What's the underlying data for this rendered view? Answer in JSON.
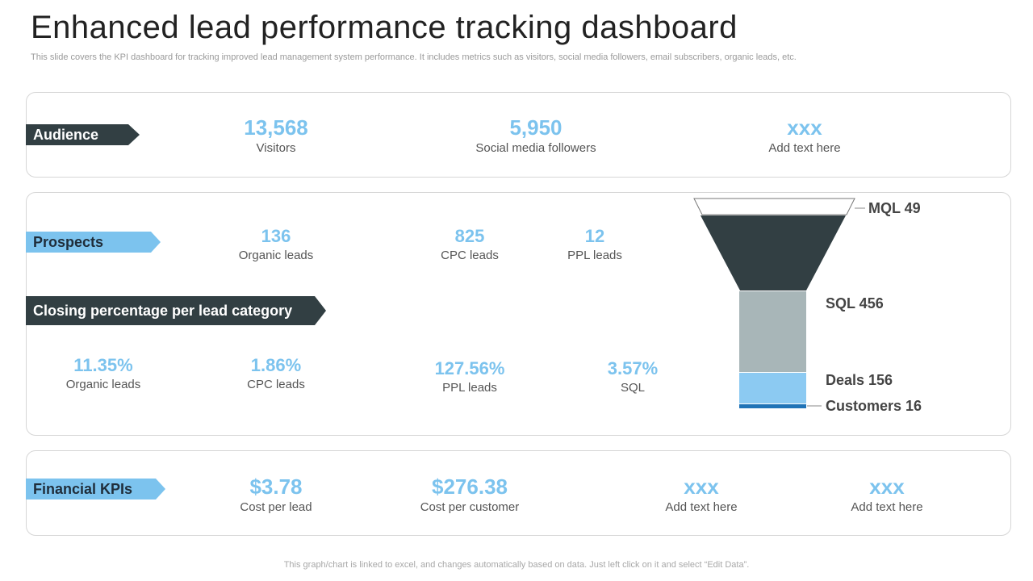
{
  "title": "Enhanced lead performance tracking dashboard",
  "subtitle": "This slide covers the KPI dashboard for tracking improved lead management system performance. It includes metrics such as visitors, social media followers, email subscribers, organic leads, etc.",
  "audience": {
    "tag": "Audience",
    "kpis": [
      {
        "value": "13,568",
        "label": "Visitors"
      },
      {
        "value": "5,950",
        "label": "Social media followers"
      },
      {
        "value": "xxx",
        "label": "Add text here"
      }
    ]
  },
  "prospects": {
    "tag": "Prospects",
    "kpis": [
      {
        "value": "136",
        "label": "Organic leads"
      },
      {
        "value": "825",
        "label": "CPC leads"
      },
      {
        "value": "12",
        "label": "PPL leads"
      }
    ]
  },
  "closing": {
    "tag": "Closing percentage per lead category",
    "kpis": [
      {
        "value": "11.35%",
        "label": "Organic leads"
      },
      {
        "value": "1.86%",
        "label": "CPC leads"
      },
      {
        "value": "127.56%",
        "label": "PPL leads"
      },
      {
        "value": "3.57%",
        "label": "SQL"
      }
    ]
  },
  "funnel": {
    "stages": [
      {
        "label": "MQL 49",
        "color": "#ffffff"
      },
      {
        "label": "SQL 456",
        "color": "#323f43"
      },
      {
        "label": "Deals 156",
        "color": "#a8b6b8"
      },
      {
        "label": "Customers 16",
        "color": "#8ccaf2"
      },
      {
        "label": "",
        "color": "#1f73b7"
      }
    ]
  },
  "financial": {
    "tag": "Financial KPIs",
    "kpis": [
      {
        "value": "$3.78",
        "label": "Cost per lead"
      },
      {
        "value": "$276.38",
        "label": "Cost per customer"
      },
      {
        "value": "xxx",
        "label": "Add text here"
      },
      {
        "value": "xxx",
        "label": "Add text here"
      }
    ]
  },
  "footer": "This graph/chart is linked to excel,  and changes automatically based on data. Just left click on it and select “Edit Data”.",
  "colors": {
    "accent": "#7cc3ee",
    "dark": "#323f43"
  }
}
